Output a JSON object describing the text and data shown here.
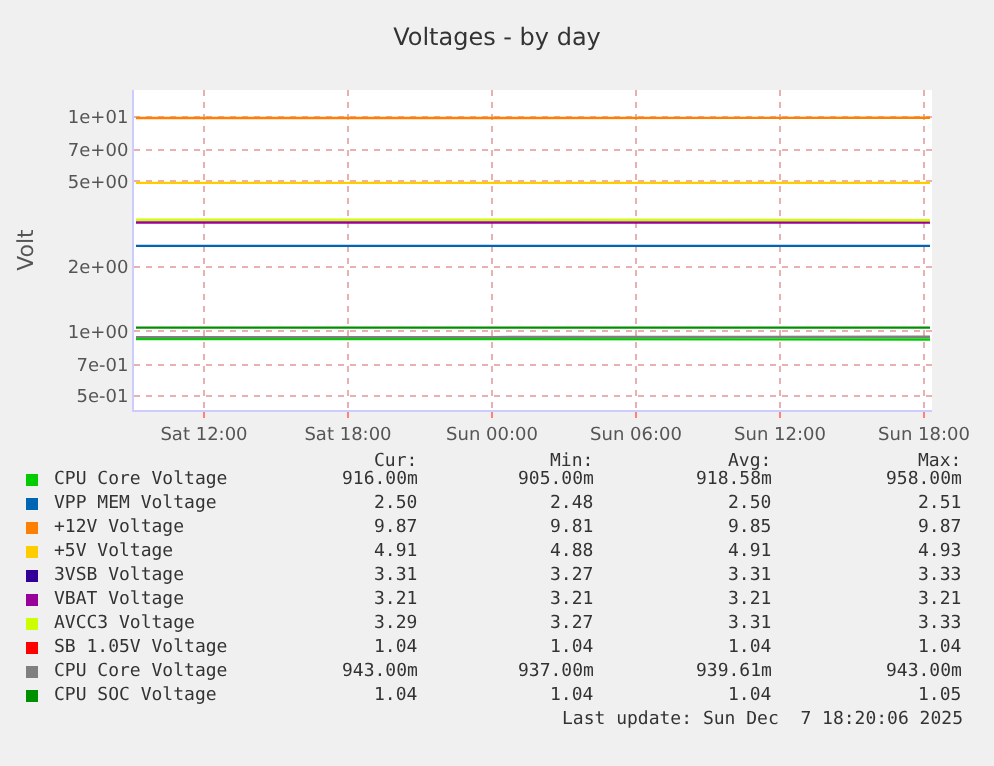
{
  "chart_data": {
    "type": "line",
    "title": "Voltages - by day",
    "ylabel": "Volt",
    "log": "y",
    "grid": true,
    "legend": "bottom",
    "marker": "none",
    "line_style": "solid",
    "x": [
      "2025-12-06T09:10",
      "2025-12-07T00:00",
      "2025-12-07T18:15"
    ],
    "xlim": [
      "2025-12-06T09:05",
      "2025-12-07T18:20"
    ],
    "xticks": [
      {
        "value": "2025-12-06T12:00",
        "label": "Sat 12:00"
      },
      {
        "value": "2025-12-06T18:00",
        "label": "Sat 18:00"
      },
      {
        "value": "2025-12-07T00:00",
        "label": "Sun 00:00"
      },
      {
        "value": "2025-12-07T06:00",
        "label": "Sun 06:00"
      },
      {
        "value": "2025-12-07T12:00",
        "label": "Sun 12:00"
      },
      {
        "value": "2025-12-07T18:00",
        "label": "Sun 18:00"
      }
    ],
    "ylim": [
      0.43,
      13.3
    ],
    "yticks": [
      {
        "value": 0.5,
        "label": "5e-01"
      },
      {
        "value": 0.7,
        "label": "7e-01"
      },
      {
        "value": 1,
        "label": "1e+00"
      },
      {
        "value": 2,
        "label": "2e+00"
      },
      {
        "value": 5,
        "label": "5e+00"
      },
      {
        "value": 7,
        "label": "7e+00"
      },
      {
        "value": 10,
        "label": "1e+01"
      }
    ],
    "series": [
      {
        "name": "CPU Core Voltage",
        "color": "#00cc00",
        "values": [
          0.92,
          0.92,
          0.916
        ]
      },
      {
        "name": "VPP MEM Voltage",
        "color": "#0066b3",
        "values": [
          2.5,
          2.5,
          2.5
        ]
      },
      {
        "name": "+12V Voltage",
        "color": "#ff8000",
        "values": [
          9.85,
          9.85,
          9.87
        ]
      },
      {
        "name": "+5V Voltage",
        "color": "#ffcc00",
        "values": [
          4.91,
          4.91,
          4.91
        ]
      },
      {
        "name": "3VSB Voltage",
        "color": "#330099",
        "values": [
          null,
          null,
          null
        ]
      },
      {
        "name": "VBAT Voltage",
        "color": "#990099",
        "values": [
          3.21,
          3.21,
          3.21
        ]
      },
      {
        "name": "AVCC3 Voltage",
        "color": "#ccff00",
        "values": [
          3.31,
          3.31,
          3.29
        ]
      },
      {
        "name": "SB 1.05V Voltage",
        "color": "#ff0000",
        "values": [
          null,
          null,
          null
        ]
      },
      {
        "name": "CPU Core Voltage",
        "color": "#808080",
        "values": [
          0.94,
          0.94,
          0.943
        ]
      },
      {
        "name": "CPU SOC Voltage",
        "color": "#008f00",
        "values": [
          1.04,
          1.04,
          1.04
        ]
      }
    ],
    "annotations": [
      "Cur:",
      "Min:",
      "Avg:",
      "Max:",
      "916.00m",
      "905.00m",
      "918.58m",
      "958.00m",
      "2.50",
      "2.48",
      "2.50",
      "2.51",
      "9.87",
      "9.81",
      "9.85",
      "9.87",
      "4.91",
      "4.88",
      "4.91",
      "4.93",
      "3.31",
      "3.27",
      "3.31",
      "3.33",
      "3.21",
      "3.21",
      "3.21",
      "3.21",
      "3.29",
      "3.27",
      "3.31",
      "3.33",
      "1.04",
      "1.04",
      "1.04",
      "1.04",
      "943.00m",
      "937.00m",
      "939.61m",
      "943.00m",
      "1.04",
      "1.04",
      "1.04",
      "1.05",
      "Last update: Sun Dec  7 18:20:06 2025"
    ]
  }
}
